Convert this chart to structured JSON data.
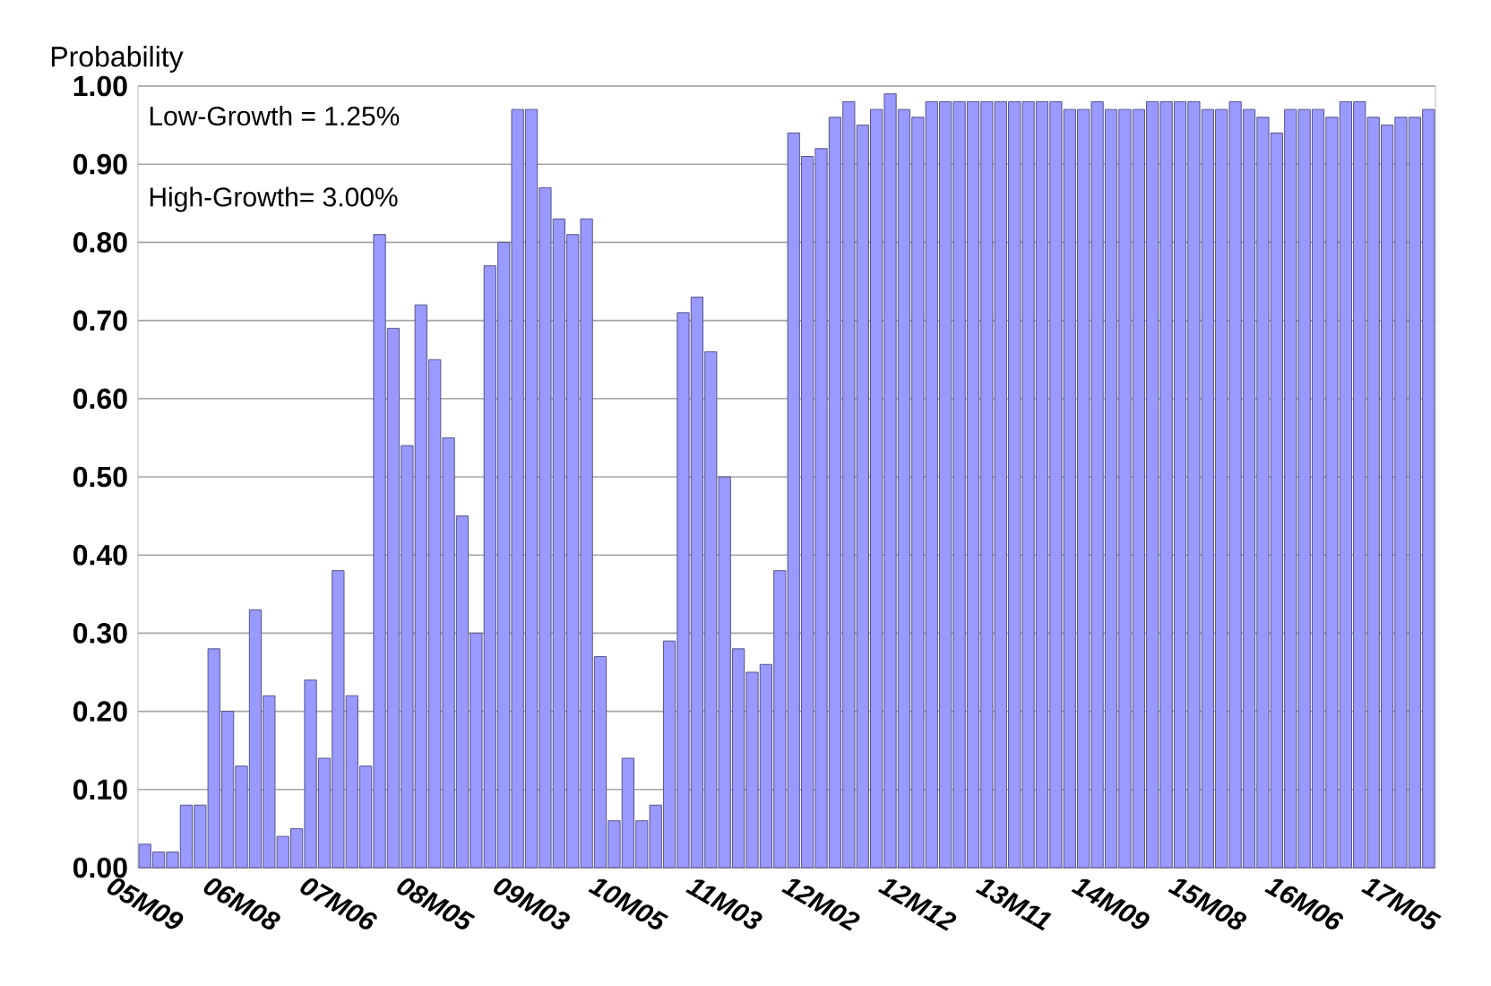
{
  "chart_data": {
    "type": "bar",
    "ylabel": "Probability",
    "categories": [
      "05M09",
      null,
      null,
      null,
      null,
      null,
      null,
      "06M08",
      null,
      null,
      null,
      null,
      null,
      null,
      "07M06",
      null,
      null,
      null,
      null,
      null,
      null,
      "08M05",
      null,
      null,
      null,
      null,
      null,
      null,
      "09M03",
      null,
      null,
      null,
      null,
      null,
      null,
      "10M05",
      null,
      null,
      null,
      null,
      null,
      null,
      "11M03",
      null,
      null,
      null,
      null,
      null,
      null,
      "12M02",
      null,
      null,
      null,
      null,
      null,
      null,
      "12M12",
      null,
      null,
      null,
      null,
      null,
      null,
      "13M11",
      null,
      null,
      null,
      null,
      null,
      null,
      "14M09",
      null,
      null,
      null,
      null,
      null,
      null,
      "15M08",
      null,
      null,
      null,
      null,
      null,
      null,
      "16M06",
      null,
      null,
      null,
      null,
      null,
      null,
      "17M05",
      null,
      null
    ],
    "values": [
      0.03,
      0.02,
      0.02,
      0.08,
      0.08,
      0.28,
      0.2,
      0.13,
      0.33,
      0.22,
      0.04,
      0.05,
      0.24,
      0.14,
      0.38,
      0.22,
      0.13,
      0.81,
      0.69,
      0.54,
      0.72,
      0.65,
      0.55,
      0.45,
      0.3,
      0.77,
      0.8,
      0.97,
      0.97,
      0.87,
      0.83,
      0.81,
      0.83,
      0.27,
      0.06,
      0.14,
      0.06,
      0.08,
      0.29,
      0.71,
      0.73,
      0.66,
      0.5,
      0.28,
      0.25,
      0.26,
      0.38,
      0.94,
      0.91,
      0.92,
      0.96,
      0.98,
      0.95,
      0.97,
      0.99,
      0.97,
      0.96,
      0.98,
      0.98,
      0.98,
      0.98,
      0.98,
      0.98,
      0.98,
      0.98,
      0.98,
      0.98,
      0.97,
      0.97,
      0.98,
      0.97,
      0.97,
      0.97,
      0.98,
      0.98,
      0.98,
      0.98,
      0.97,
      0.97,
      0.98,
      0.97,
      0.96,
      0.94,
      0.97,
      0.97,
      0.97,
      0.96,
      0.98,
      0.98,
      0.96,
      0.95,
      0.96,
      0.96,
      0.97
    ],
    "color": "#9999ff",
    "ylim": [
      0,
      1
    ],
    "yticks": [
      {
        "value": 0,
        "label": "0.00"
      },
      {
        "value": 0.1,
        "label": "0.10"
      },
      {
        "value": 0.2,
        "label": "0.20"
      },
      {
        "value": 0.3,
        "label": "0.30"
      },
      {
        "value": 0.4,
        "label": "0.40"
      },
      {
        "value": 0.5,
        "label": "0.50"
      },
      {
        "value": 0.6,
        "label": "0.60"
      },
      {
        "value": 0.7,
        "label": "0.70"
      },
      {
        "value": 0.8,
        "label": "0.80"
      },
      {
        "value": 0.9,
        "label": "0.90"
      },
      {
        "value": 1,
        "label": "1.00"
      }
    ],
    "grid": "y",
    "annotations": [
      "Low-Growth = 1.25%",
      "High-Growth= 3.00%"
    ]
  }
}
